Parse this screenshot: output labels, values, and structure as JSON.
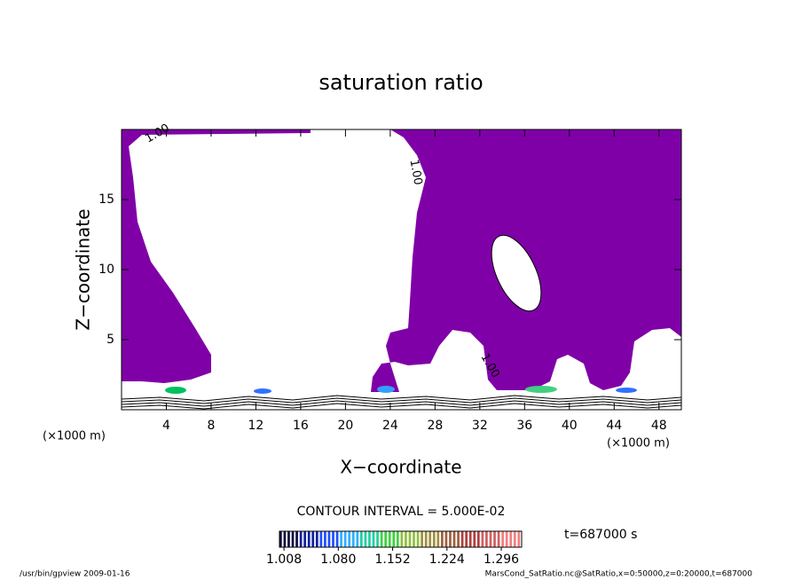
{
  "chart_data": {
    "type": "contour",
    "title": "saturation ratio",
    "xlabel": "X−coordinate",
    "ylabel": "Z−coordinate",
    "x_unit": "(×1000 m)",
    "x_unit_right": "(×1000 m)",
    "xlim": [
      0,
      50
    ],
    "xticks": [
      4,
      8,
      12,
      16,
      20,
      24,
      28,
      32,
      36,
      40,
      44,
      48
    ],
    "ylim": [
      0,
      20
    ],
    "yticks": [
      5,
      10,
      15
    ],
    "fill_color": "#8000a8",
    "contour_labels": [
      "1.00",
      "1.00",
      "1.00"
    ],
    "contour_interval": "CONTOUR INTERVAL = 5.000E-02",
    "time": "t=687000 s",
    "colorbar": {
      "clim": [
        1.002,
        1.323
      ],
      "ticks": [
        {
          "value": 1.008,
          "label": "1.008"
        },
        {
          "value": 1.08,
          "label": "1.080"
        },
        {
          "value": 1.152,
          "label": "1.152"
        },
        {
          "value": 1.224,
          "label": "1.224"
        },
        {
          "value": 1.296,
          "label": "1.296"
        }
      ]
    },
    "footer_left": "/usr/bin/gpview  2009-01-16",
    "footer_right": "MarsCond_SatRatio.nc@SatRatio,x=0:50000,z=0:20000,t=687000"
  }
}
